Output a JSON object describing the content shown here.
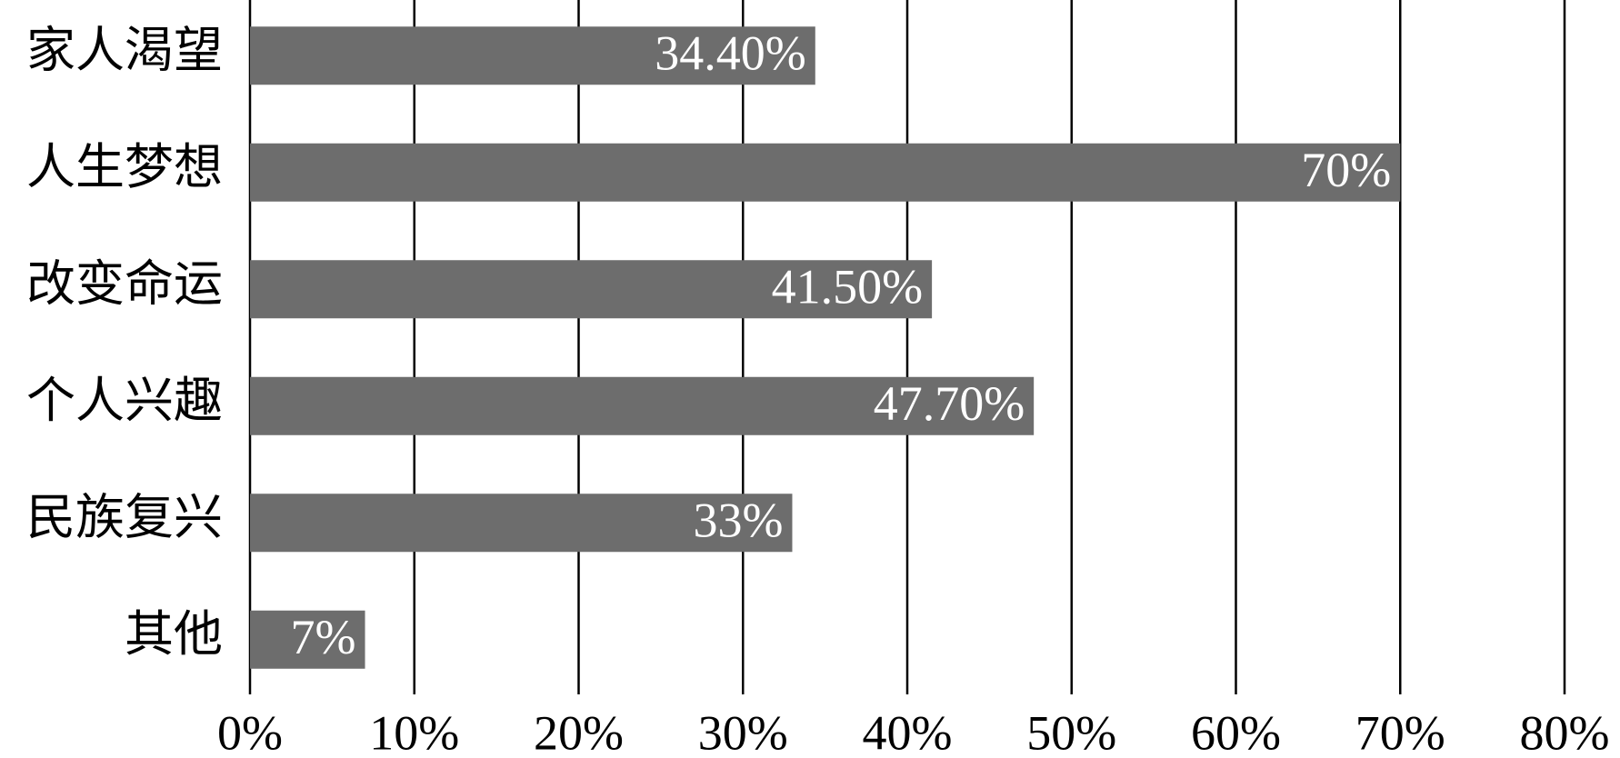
{
  "chart_data": {
    "type": "bar",
    "orientation": "horizontal",
    "categories": [
      "家人渴望",
      "人生梦想",
      "改变命运",
      "个人兴趣",
      "民族复兴",
      "其他"
    ],
    "values": [
      34.4,
      70,
      41.5,
      47.7,
      33,
      7
    ],
    "value_labels": [
      "34.40%",
      "70%",
      "41.50%",
      "47.70%",
      "33%",
      "7%"
    ],
    "color": "#6d6d6d",
    "xlim": [
      0,
      80
    ],
    "xticks": [
      {
        "value": 0,
        "label": "0%"
      },
      {
        "value": 10,
        "label": "10%"
      },
      {
        "value": 20,
        "label": "20%"
      },
      {
        "value": 30,
        "label": "30%"
      },
      {
        "value": 40,
        "label": "40%"
      },
      {
        "value": 50,
        "label": "50%"
      },
      {
        "value": 60,
        "label": "60%"
      },
      {
        "value": 70,
        "label": "70%"
      },
      {
        "value": 80,
        "label": "80%"
      }
    ],
    "grid": true
  }
}
